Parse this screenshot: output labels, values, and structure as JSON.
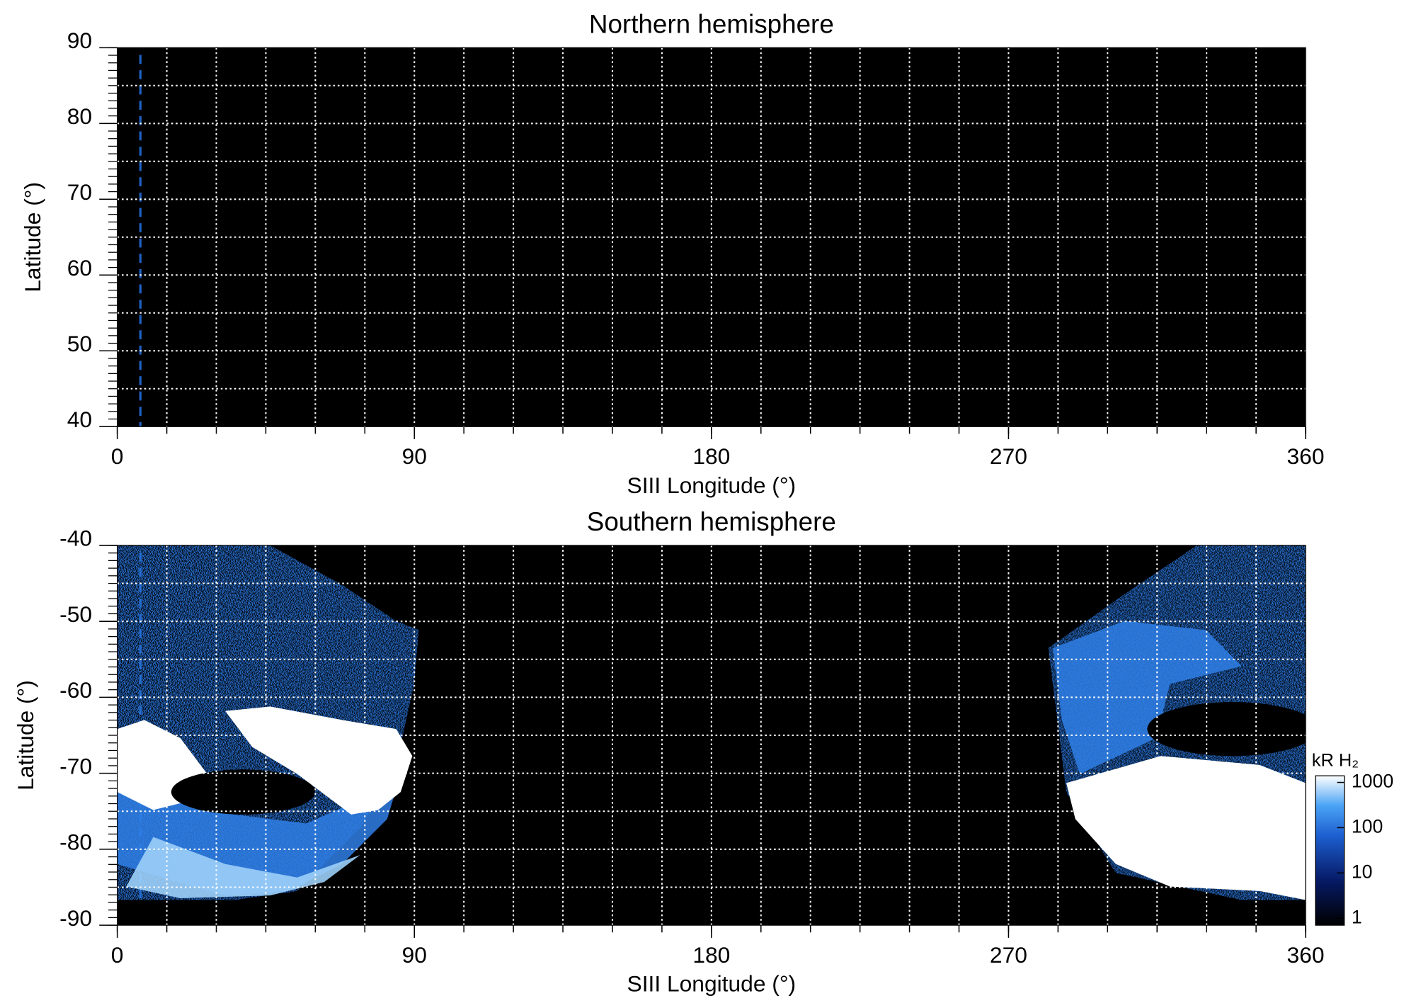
{
  "chart_data": [
    {
      "type": "heatmap",
      "title": "Northern hemisphere",
      "x_label": "SIII Longitude (°)",
      "y_label": "Latitude (°)",
      "xlim": [
        0,
        360
      ],
      "xticks": [
        0,
        90,
        180,
        270,
        360
      ],
      "ylim": [
        40,
        90
      ],
      "yticks": [
        40,
        50,
        60,
        70,
        80,
        90
      ],
      "grid": true,
      "grid_x_step": 15,
      "grid_y_step": 5,
      "minor_y_step": 1,
      "background": "#000000",
      "marker_line": {
        "x": 7,
        "color": "#1f63c6"
      }
    },
    {
      "type": "heatmap",
      "title": "Southern hemisphere",
      "x_label": "SIII Longitude (°)",
      "y_label": "Latitude (°)",
      "xlim": [
        0,
        360
      ],
      "xticks": [
        0,
        90,
        180,
        270,
        360
      ],
      "ylim": [
        -90,
        -40
      ],
      "yticks": [
        -90,
        -80,
        -70,
        -60,
        -50,
        -40
      ],
      "grid": true,
      "grid_x_step": 15,
      "grid_y_step": 5,
      "minor_y_step": 1,
      "background": "#000000",
      "marker_line": {
        "x": 7,
        "color": "#1f63c6"
      },
      "colorbar": {
        "label": "kR H₂",
        "scale": "log",
        "lim": [
          0.7,
          1400
        ],
        "ticks": [
          1,
          10,
          100,
          1000
        ]
      }
    }
  ]
}
